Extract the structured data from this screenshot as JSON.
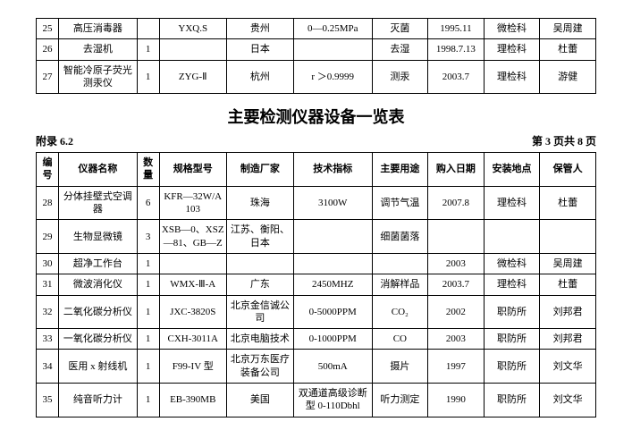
{
  "top_rows": [
    {
      "id": "25",
      "name": "高压消毒器",
      "qty": "",
      "model": "YXQ.S",
      "mfr": "贵州",
      "spec": "0—0.25MPa",
      "use": "灭菌",
      "date": "1995.11",
      "loc": "微检科",
      "keeper": "吴周建"
    },
    {
      "id": "26",
      "name": "去湿机",
      "qty": "1",
      "model": "",
      "mfr": "日本",
      "spec": "",
      "use": "去湿",
      "date": "1998.7.13",
      "loc": "理检科",
      "keeper": "杜蕾"
    },
    {
      "id": "27",
      "name": "智能冷原子荧光测汞仪",
      "qty": "1",
      "model": "ZYG-Ⅱ",
      "mfr": "杭州",
      "spec": "r ＞0.9999",
      "use": "测汞",
      "date": "2003.7",
      "loc": "理检科",
      "keeper": "游健"
    }
  ],
  "title": "主要检测仪器设备一览表",
  "appendix": "附录 6.2",
  "page_info": "第 3 页共 8 页",
  "headers": {
    "id": "编号",
    "name": "仪器名称",
    "qty": "数量",
    "model": "规格型号",
    "mfr": "制造厂家",
    "spec": "技术指标",
    "use": "主要用途",
    "date": "购入日期",
    "loc": "安装地点",
    "keeper": "保管人"
  },
  "rows": [
    {
      "id": "28",
      "name": "分体挂壁式空调器",
      "qty": "6",
      "model": "KFR—32W/A103",
      "mfr": "珠海",
      "spec": "3100W",
      "use": "调节气温",
      "date": "2007.8",
      "loc": "理检科",
      "keeper": "杜蕾"
    },
    {
      "id": "29",
      "name": "生物显微镜",
      "qty": "3",
      "model": "XSB—0、XSZ—81、GB—Z",
      "mfr": "江苏、衡阳、日本",
      "spec": "",
      "use": "细菌菌落",
      "date": "",
      "loc": "",
      "keeper": ""
    },
    {
      "id": "30",
      "name": "超净工作台",
      "qty": "1",
      "model": "",
      "mfr": "",
      "spec": "",
      "use": "",
      "date": "2003",
      "loc": "微检科",
      "keeper": "吴周建"
    },
    {
      "id": "31",
      "name": "微波消化仪",
      "qty": "1",
      "model": "WMX-Ⅲ-A",
      "mfr": "广东",
      "spec": "2450MHZ",
      "use": "消解样品",
      "date": "2003.7",
      "loc": "理检科",
      "keeper": "杜蕾"
    },
    {
      "id": "32",
      "name": "二氧化碳分析仪",
      "qty": "1",
      "model": "JXC-3820S",
      "mfr": "北京金信诚公司",
      "spec": "0-5000PPM",
      "use": "CO₂",
      "date": "2002",
      "loc": "职防所",
      "keeper": "刘邦君"
    },
    {
      "id": "33",
      "name": "一氧化碳分析仪",
      "qty": "1",
      "model": "CXH-3011A",
      "mfr": "北京电脑技术",
      "spec": "0-1000PPM",
      "use": "CO",
      "date": "2003",
      "loc": "职防所",
      "keeper": "刘邦君"
    },
    {
      "id": "34",
      "name": "医用 x 射线机",
      "qty": "1",
      "model": "F99-IV 型",
      "mfr": "北京万东医疗装备公司",
      "spec": "500mA",
      "use": "摄片",
      "date": "1997",
      "loc": "职防所",
      "keeper": "刘文华"
    },
    {
      "id": "35",
      "name": "纯音听力计",
      "qty": "1",
      "model": "EB-390MB",
      "mfr": "美国",
      "spec": "双通道高级诊断型 0-110Dbhl",
      "use": "听力测定",
      "date": "1990",
      "loc": "职防所",
      "keeper": "刘文华"
    }
  ]
}
